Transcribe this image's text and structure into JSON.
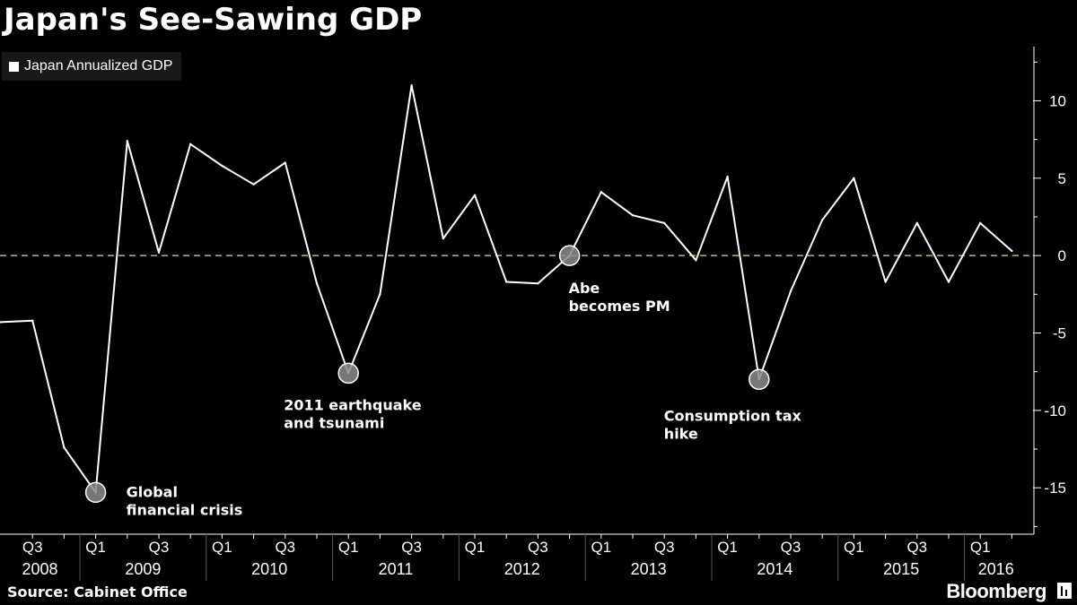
{
  "title": "Japan's See-Sawing GDP",
  "source": "Source: Cabinet Office",
  "brand": "Bloomberg",
  "colors": {
    "background": "#000000",
    "line": "#ffffff",
    "zero_line": "#f5d38a",
    "marker": "#8c8c8c"
  },
  "chart_data": {
    "type": "line",
    "title": "Japan's See-Sawing GDP",
    "legend": "Japan Annualized GDP",
    "legend_position": "top-left",
    "x": [
      "2008 Q2",
      "2008 Q3",
      "2008 Q4",
      "2009 Q1",
      "2009 Q2",
      "2009 Q3",
      "2009 Q4",
      "2010 Q1",
      "2010 Q2",
      "2010 Q3",
      "2010 Q4",
      "2011 Q1",
      "2011 Q2",
      "2011 Q3",
      "2011 Q4",
      "2012 Q1",
      "2012 Q2",
      "2012 Q3",
      "2012 Q4",
      "2013 Q1",
      "2013 Q2",
      "2013 Q3",
      "2013 Q4",
      "2014 Q1",
      "2014 Q2",
      "2014 Q3",
      "2014 Q4",
      "2015 Q1",
      "2015 Q2",
      "2015 Q3",
      "2015 Q4",
      "2016 Q1",
      "2016 Q2"
    ],
    "series": [
      {
        "name": "Japan Annualized GDP",
        "values": [
          -4.3,
          -4.2,
          -12.4,
          -15.3,
          7.4,
          0.2,
          7.2,
          5.8,
          4.6,
          6.0,
          -1.8,
          -7.6,
          -2.5,
          11.0,
          1.1,
          3.9,
          -1.7,
          -1.8,
          0.0,
          4.1,
          2.6,
          2.1,
          -0.3,
          5.1,
          -8.0,
          -2.3,
          2.3,
          5.0,
          -1.7,
          2.1,
          -1.7,
          2.1,
          0.3
        ]
      }
    ],
    "y_axis": {
      "position": "right",
      "ylim": [
        -18,
        13.5
      ],
      "ticks": [
        10,
        5,
        0,
        -5,
        -10,
        -15
      ],
      "tick_labels": [
        "10",
        "5",
        "0",
        "-5",
        "-10",
        "-15"
      ]
    },
    "x_axis": {
      "quarter_labels": [
        {
          "x": "2008 Q3",
          "label": "Q3"
        },
        {
          "x": "2009 Q1",
          "label": "Q1"
        },
        {
          "x": "2009 Q3",
          "label": "Q3"
        },
        {
          "x": "2010 Q1",
          "label": "Q1"
        },
        {
          "x": "2010 Q3",
          "label": "Q3"
        },
        {
          "x": "2011 Q1",
          "label": "Q1"
        },
        {
          "x": "2011 Q3",
          "label": "Q3"
        },
        {
          "x": "2012 Q1",
          "label": "Q1"
        },
        {
          "x": "2012 Q3",
          "label": "Q3"
        },
        {
          "x": "2013 Q1",
          "label": "Q1"
        },
        {
          "x": "2013 Q3",
          "label": "Q3"
        },
        {
          "x": "2014 Q1",
          "label": "Q1"
        },
        {
          "x": "2014 Q3",
          "label": "Q3"
        },
        {
          "x": "2015 Q1",
          "label": "Q1"
        },
        {
          "x": "2015 Q3",
          "label": "Q3"
        },
        {
          "x": "2016 Q1",
          "label": "Q1"
        }
      ],
      "year_labels": [
        "2008",
        "2009",
        "2010",
        "2011",
        "2012",
        "2013",
        "2014",
        "2015",
        "2016"
      ]
    },
    "reference_line": {
      "y": 0,
      "style": "dashed"
    },
    "annotations": [
      {
        "x": "2009 Q1",
        "y": -15.3,
        "lines": [
          "Global",
          "financial crisis"
        ]
      },
      {
        "x": "2011 Q1",
        "y": -7.6,
        "lines": [
          "2011 earthquake",
          "and tsunami"
        ]
      },
      {
        "x": "2012 Q4",
        "y": 0.0,
        "lines": [
          "Abe",
          "becomes PM"
        ]
      },
      {
        "x": "2014 Q2",
        "y": -8.0,
        "lines": [
          "Consumption tax",
          "hike"
        ]
      }
    ]
  }
}
